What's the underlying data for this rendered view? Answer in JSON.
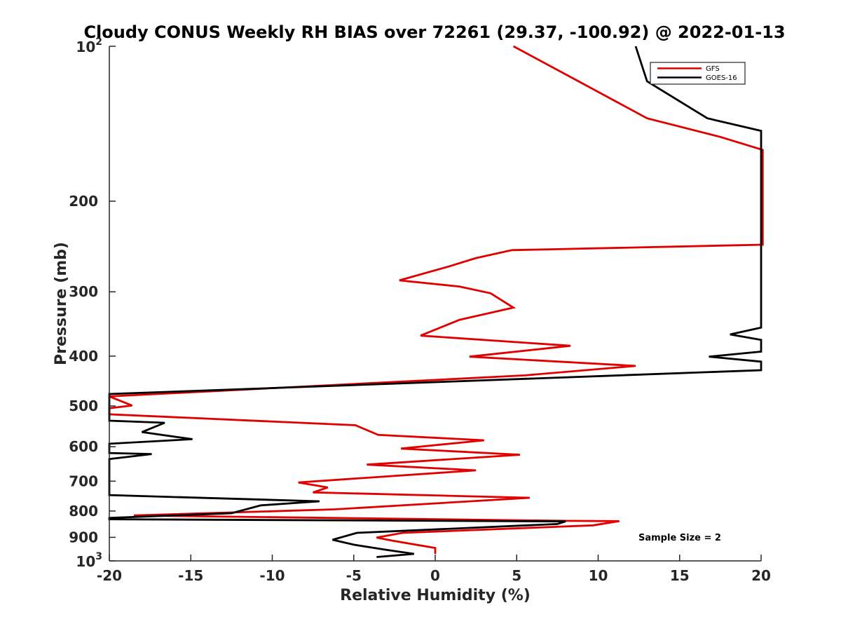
{
  "chart_data": {
    "type": "line",
    "title": "Cloudy CONUS Weekly RH BIAS over 72261 (29.37, -100.92) @ 2022-01-13",
    "xlabel": "Relative Humidity (%)",
    "ylabel": "Pressure (mb)",
    "xlim": [
      -20,
      20
    ],
    "ylim": [
      100,
      1000
    ],
    "yscale": "log",
    "y_reversed": true,
    "grid": false,
    "x_ticks": [
      "-20",
      "-15",
      "-10",
      "-5",
      "0",
      "5",
      "10",
      "15",
      "20"
    ],
    "y_ticks": [
      {
        "value": 100,
        "base": "10",
        "exp": "2",
        "label": ""
      },
      {
        "value": 200,
        "label": "200"
      },
      {
        "value": 300,
        "label": "300"
      },
      {
        "value": 400,
        "label": "400"
      },
      {
        "value": 500,
        "label": "500"
      },
      {
        "value": 600,
        "label": "600"
      },
      {
        "value": 700,
        "label": "700"
      },
      {
        "value": 800,
        "label": "800"
      },
      {
        "value": 900,
        "label": "900"
      },
      {
        "value": 1000,
        "base": "10",
        "exp": "3",
        "label": ""
      }
    ],
    "legend_position": "top-right",
    "annotation": "Sample Size = 2",
    "series": [
      {
        "name": "GFS",
        "color": "#e00000",
        "points": [
          {
            "x": 4.8,
            "y": 100
          },
          {
            "x": 8.8,
            "y": 117
          },
          {
            "x": 13.0,
            "y": 138
          },
          {
            "x": 17.5,
            "y": 150
          },
          {
            "x": 20.1,
            "y": 159
          },
          {
            "x": 20.1,
            "y": 243
          },
          {
            "x": 4.7,
            "y": 249
          },
          {
            "x": 2.5,
            "y": 258
          },
          {
            "x": 0.8,
            "y": 268
          },
          {
            "x": -2.2,
            "y": 285
          },
          {
            "x": 1.5,
            "y": 293
          },
          {
            "x": 3.4,
            "y": 302
          },
          {
            "x": 4.8,
            "y": 322
          },
          {
            "x": 1.5,
            "y": 340
          },
          {
            "x": -0.9,
            "y": 365
          },
          {
            "x": 8.3,
            "y": 382
          },
          {
            "x": 2.1,
            "y": 401
          },
          {
            "x": 12.3,
            "y": 418
          },
          {
            "x": 5.5,
            "y": 436
          },
          {
            "x": -20.0,
            "y": 479
          },
          {
            "x": -18.6,
            "y": 499
          },
          {
            "x": -20.0,
            "y": 505
          },
          {
            "x": -20.0,
            "y": 519
          },
          {
            "x": -4.9,
            "y": 545
          },
          {
            "x": -3.5,
            "y": 569
          },
          {
            "x": 3.0,
            "y": 583
          },
          {
            "x": -2.1,
            "y": 605
          },
          {
            "x": 5.2,
            "y": 622
          },
          {
            "x": -4.2,
            "y": 650
          },
          {
            "x": 2.5,
            "y": 667
          },
          {
            "x": -8.4,
            "y": 704
          },
          {
            "x": -6.6,
            "y": 720
          },
          {
            "x": -7.5,
            "y": 736
          },
          {
            "x": 5.8,
            "y": 754
          },
          {
            "x": -6.2,
            "y": 794
          },
          {
            "x": -18.5,
            "y": 816
          },
          {
            "x": 8.0,
            "y": 836
          },
          {
            "x": 11.3,
            "y": 837
          },
          {
            "x": 9.7,
            "y": 853
          },
          {
            "x": -2.0,
            "y": 882
          },
          {
            "x": -3.6,
            "y": 901
          },
          {
            "x": -2.6,
            "y": 914
          },
          {
            "x": 0.0,
            "y": 944
          },
          {
            "x": 0.0,
            "y": 969
          }
        ]
      },
      {
        "name": "GOES-16",
        "color": "#000000",
        "points": [
          {
            "x": 12.3,
            "y": 100
          },
          {
            "x": 13.0,
            "y": 117
          },
          {
            "x": 16.7,
            "y": 138
          },
          {
            "x": 20.0,
            "y": 146
          },
          {
            "x": 20.0,
            "y": 352
          },
          {
            "x": 18.1,
            "y": 363
          },
          {
            "x": 20.0,
            "y": 372
          },
          {
            "x": 20.0,
            "y": 392
          },
          {
            "x": 16.8,
            "y": 401
          },
          {
            "x": 20.0,
            "y": 410
          },
          {
            "x": 20.0,
            "y": 426
          },
          {
            "x": -20.0,
            "y": 474
          },
          {
            "x": -20.0,
            "y": 534
          },
          {
            "x": -16.6,
            "y": 539
          },
          {
            "x": -18.0,
            "y": 562
          },
          {
            "x": -14.9,
            "y": 580
          },
          {
            "x": -20.0,
            "y": 592
          },
          {
            "x": -20.0,
            "y": 608
          },
          {
            "x": -20.0,
            "y": 617
          },
          {
            "x": -17.4,
            "y": 620
          },
          {
            "x": -20.0,
            "y": 634
          },
          {
            "x": -20.0,
            "y": 745
          },
          {
            "x": -7.1,
            "y": 766
          },
          {
            "x": -10.7,
            "y": 780
          },
          {
            "x": -12.5,
            "y": 808
          },
          {
            "x": -20.0,
            "y": 825
          },
          {
            "x": -20.0,
            "y": 830
          },
          {
            "x": 8.0,
            "y": 838
          },
          {
            "x": 7.5,
            "y": 848
          },
          {
            "x": -4.8,
            "y": 882
          },
          {
            "x": -6.3,
            "y": 910
          },
          {
            "x": -5.0,
            "y": 930
          },
          {
            "x": -3.0,
            "y": 952
          },
          {
            "x": -1.3,
            "y": 969
          },
          {
            "x": -3.6,
            "y": 983
          }
        ]
      }
    ]
  }
}
